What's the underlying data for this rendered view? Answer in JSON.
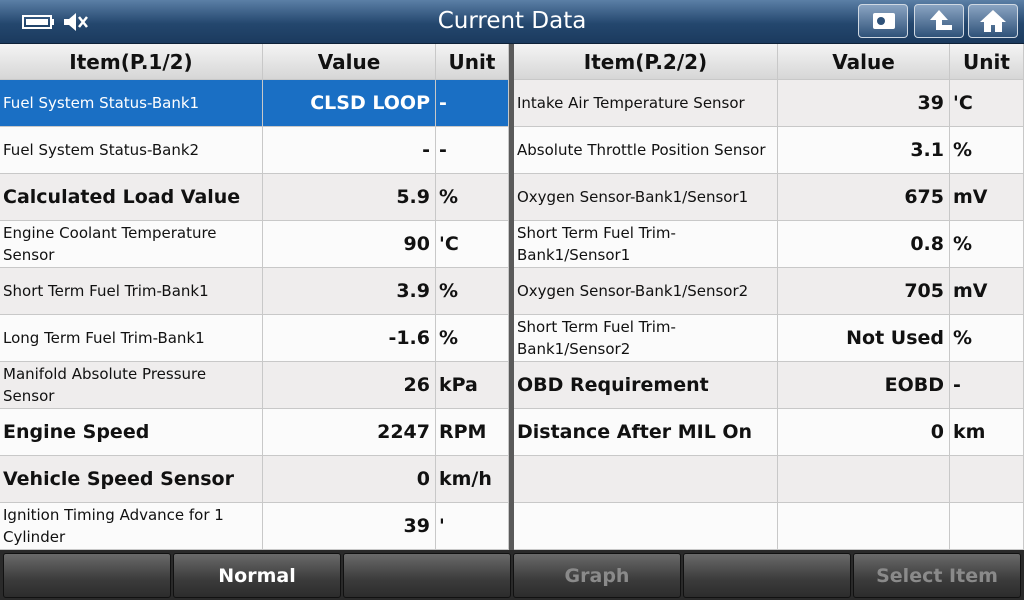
{
  "header": {
    "title": "Current Data"
  },
  "left_table": {
    "columns": [
      "Item(P.1/2)",
      "Value",
      "Unit"
    ],
    "rows": [
      [
        "Fuel System Status-Bank1",
        "CLSD LOOP",
        "-"
      ],
      [
        "Fuel System Status-Bank2",
        "-",
        "-"
      ],
      [
        "Calculated Load Value",
        "5.9",
        "%"
      ],
      [
        "Engine Coolant Temperature Sensor",
        "90",
        "'C"
      ],
      [
        "Short Term Fuel Trim-Bank1",
        "3.9",
        "%"
      ],
      [
        "Long Term Fuel Trim-Bank1",
        "-1.6",
        "%"
      ],
      [
        "Manifold Absolute Pressure Sensor",
        "26",
        "kPa"
      ],
      [
        "Engine Speed",
        "2247",
        "RPM"
      ],
      [
        "Vehicle Speed Sensor",
        "0",
        "km/h"
      ],
      [
        "Ignition Timing Advance for 1 Cylinder",
        "39",
        "'"
      ]
    ]
  },
  "right_table": {
    "columns": [
      "Item(P.2/2)",
      "Value",
      "Unit"
    ],
    "rows": [
      [
        "Intake Air Temperature Sensor",
        "39",
        "'C"
      ],
      [
        "Absolute Throttle Position Sensor",
        "3.1",
        "%"
      ],
      [
        "Oxygen Sensor-Bank1/Sensor1",
        "675",
        "mV"
      ],
      [
        "Short Term Fuel Trim-Bank1/Sensor1",
        "0.8",
        "%"
      ],
      [
        "Oxygen Sensor-Bank1/Sensor2",
        "705",
        "mV"
      ],
      [
        "Short Term Fuel Trim-Bank1/Sensor2",
        "Not Used",
        "%"
      ],
      [
        "OBD Requirement",
        "EOBD",
        "-"
      ],
      [
        "Distance After MIL On",
        "0",
        "km"
      ]
    ]
  },
  "toolbar": {
    "buttons": [
      "Normal",
      "Graph",
      "Select Item"
    ]
  }
}
